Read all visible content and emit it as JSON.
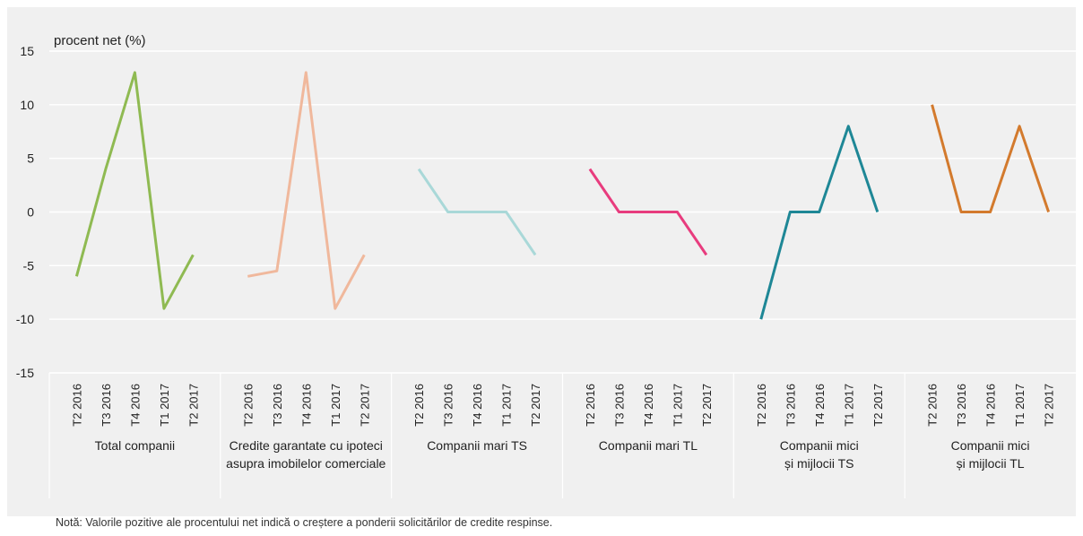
{
  "chart_data": {
    "type": "line",
    "ylabel": "procent net (%)",
    "ylim": [
      -15,
      15
    ],
    "yticks": [
      15,
      10,
      5,
      0,
      -5,
      -10,
      -15
    ],
    "grid": true,
    "periods": [
      "T2 2016",
      "T3 2016",
      "T4 2016",
      "T1 2017",
      "T2 2017"
    ],
    "groups": [
      {
        "label": "Total companii",
        "color": "#8fba52",
        "values": [
          -6,
          4,
          13,
          -9,
          -4
        ]
      },
      {
        "label": "Credite garantate cu ipoteci asupra imobilelor comerciale",
        "color": "#f0b89c",
        "values": [
          -6,
          -5.5,
          13,
          -9,
          -4
        ]
      },
      {
        "label": "Companii mari TS",
        "color": "#a9d8d8",
        "values": [
          4,
          0,
          0,
          0,
          -4
        ]
      },
      {
        "label": "Companii mari TL",
        "color": "#e83c7e",
        "values": [
          4,
          0,
          0,
          0,
          -4
        ]
      },
      {
        "label": "Companii mici și mijlocii TS",
        "color": "#1e8796",
        "values": [
          -10,
          0,
          0,
          8,
          0
        ]
      },
      {
        "label": "Companii mici și mijlocii TL",
        "color": "#d37a2d",
        "values": [
          10,
          0,
          0,
          8,
          0
        ]
      }
    ]
  },
  "note": "Notă: Valorile pozitive ale procentului net indică o creștere a ponderii solicitărilor de credite respinse."
}
